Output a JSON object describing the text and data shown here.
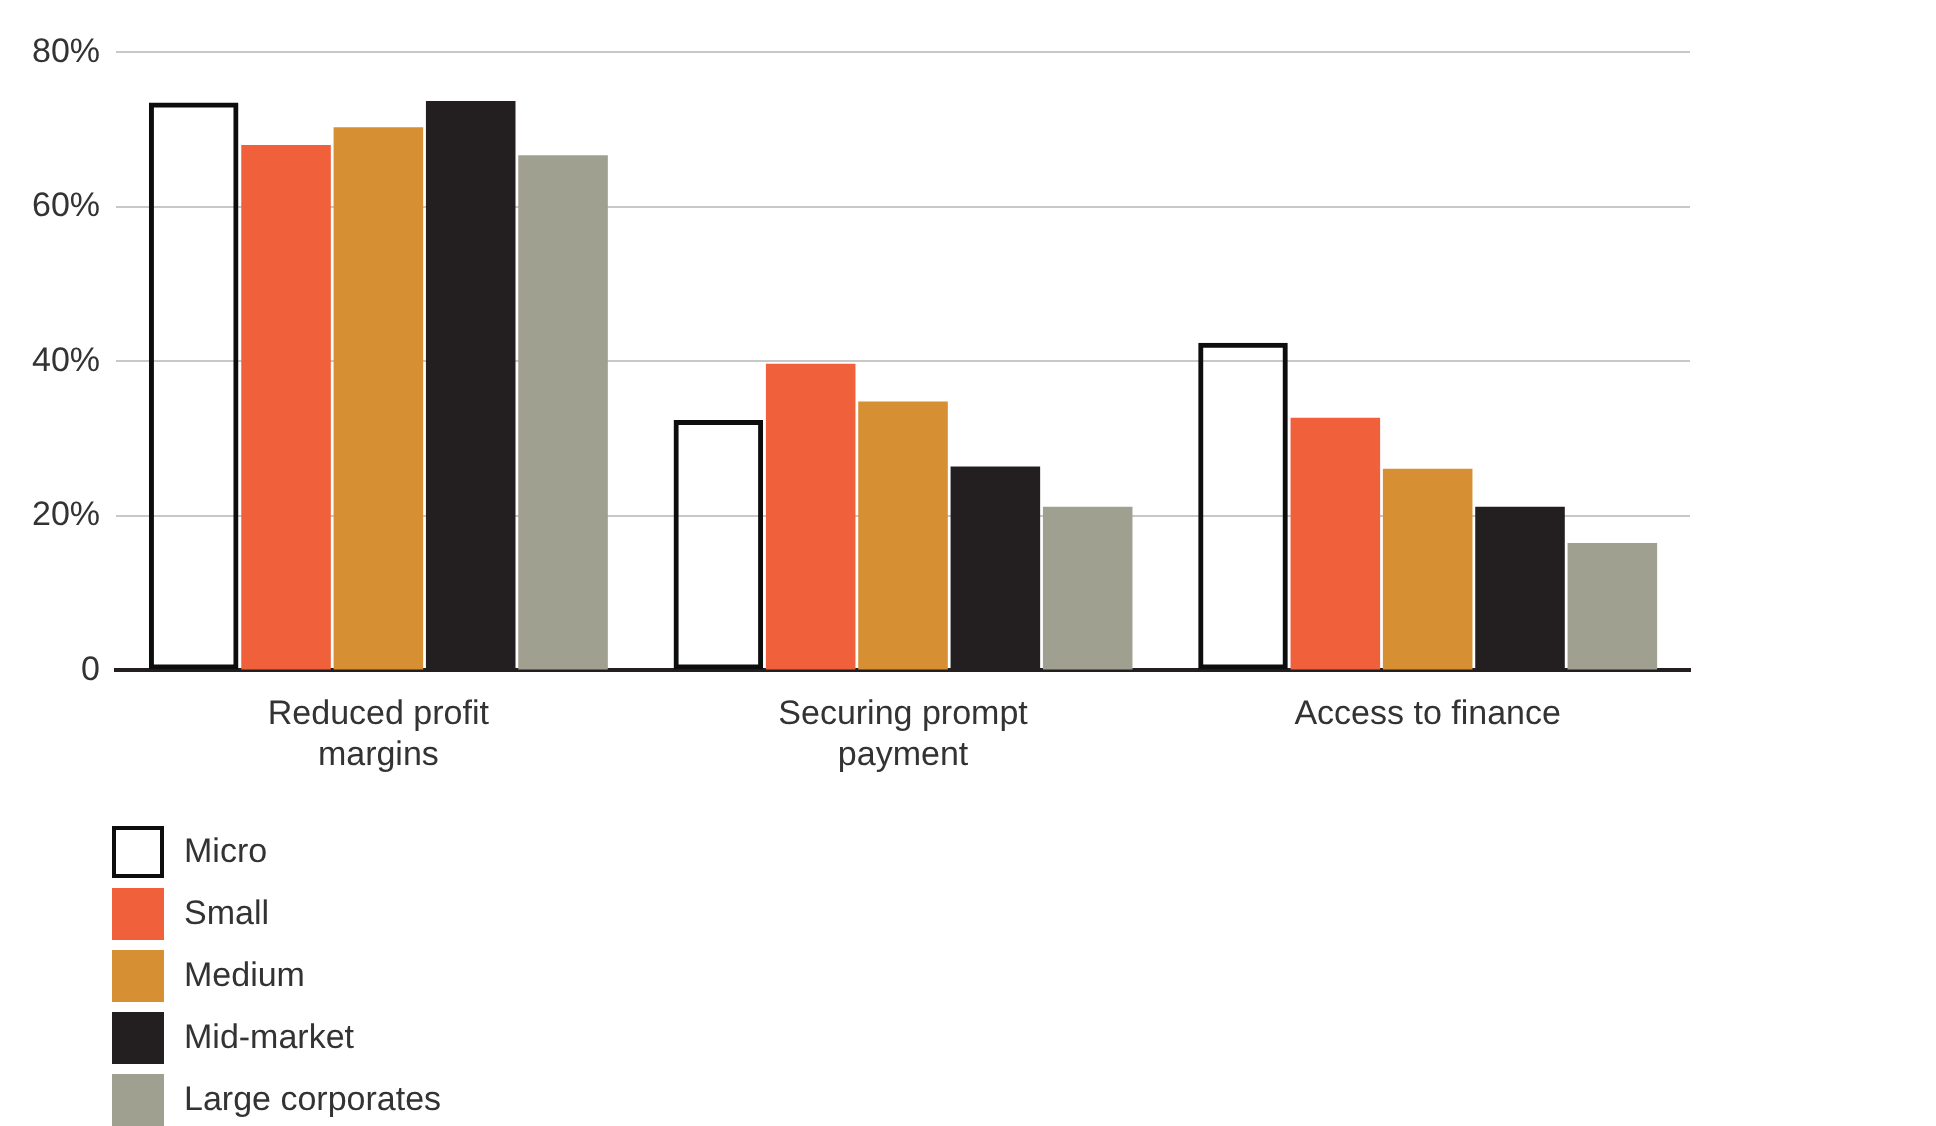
{
  "chart_data": {
    "type": "bar",
    "categories": [
      "Reduced profit margins",
      "Securing prompt payment",
      "Access to finance"
    ],
    "series": [
      {
        "name": "Micro",
        "color": "#0d0d0d",
        "values": [
          73.5,
          32.4,
          42.4
        ]
      },
      {
        "name": "Small",
        "color": "#f0603a",
        "values": [
          68,
          39.7,
          32.7
        ]
      },
      {
        "name": "Medium",
        "color": "#d68f33",
        "values": [
          70.3,
          34.8,
          26.1
        ]
      },
      {
        "name": "Mid-market",
        "color": "#231f20",
        "values": [
          73.7,
          26.4,
          21.2
        ]
      },
      {
        "name": "Large corporates",
        "color": "#a0a091",
        "values": [
          66.7,
          21.2,
          16.5
        ]
      }
    ],
    "ylim": [
      0,
      80
    ],
    "yticks": [
      {
        "value": 0,
        "label": "0"
      },
      {
        "value": 20,
        "label": "20%"
      },
      {
        "value": 40,
        "label": "40%"
      },
      {
        "value": 60,
        "label": "60%"
      },
      {
        "value": 80,
        "label": "80%"
      }
    ],
    "grid": "y",
    "legend": "bottom"
  }
}
